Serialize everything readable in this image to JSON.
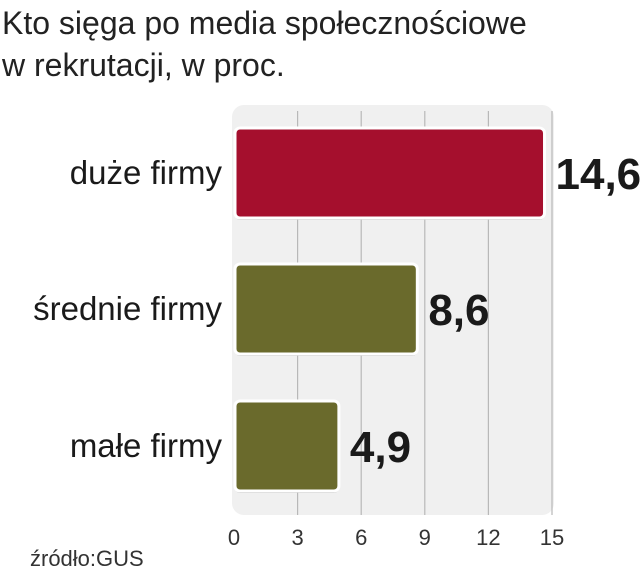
{
  "title_lines": [
    "Kto sięga po media społecznościowe",
    "w rekrutacji, w proc."
  ],
  "source": "źródło:GUS",
  "chart_data": {
    "type": "bar",
    "orientation": "horizontal",
    "categories": [
      "duże firmy",
      "średnie firmy",
      "małe firmy"
    ],
    "values": [
      14.6,
      8.6,
      4.9
    ],
    "value_labels": [
      "14,6",
      "8,6",
      "4,9"
    ],
    "bar_colors": [
      "#a50f2d",
      "#6a6a2c",
      "#6a6a2c"
    ],
    "xlim": [
      0,
      15
    ],
    "xticks": [
      0,
      3,
      6,
      9,
      12,
      15
    ],
    "grid": true
  }
}
